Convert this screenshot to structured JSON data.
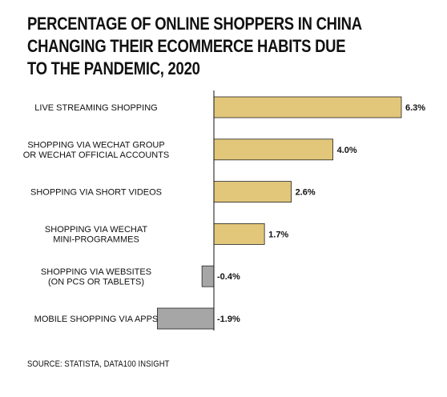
{
  "chart_data": {
    "type": "bar",
    "orientation": "horizontal",
    "title": "PERCENTAGE OF ONLINE SHOPPERS IN CHINA CHANGING THEIR ECOMMERCE HABITS DUE TO THE PANDEMIC, 2020",
    "title_lines": [
      "PERCENTAGE OF ONLINE SHOPPERS IN CHINA",
      "CHANGING THEIR ECOMMERCE HABITS DUE",
      "TO THE PANDEMIC, 2020"
    ],
    "categories": [
      [
        "LIVE STREAMING SHOPPING"
      ],
      [
        "SHOPPING VIA WECHAT GROUP",
        "OR WECHAT OFFICIAL ACCOUNTS"
      ],
      [
        "SHOPPING VIA SHORT VIDEOS"
      ],
      [
        "SHOPPING VIA WECHAT",
        "MINI-PROGRAMMES"
      ],
      [
        "SHOPPING VIA WEBSITES",
        "(ON PCS OR TABLETS)"
      ],
      [
        "MOBILE SHOPPING VIA APPS"
      ]
    ],
    "values": [
      6.3,
      4.0,
      2.6,
      1.7,
      -0.4,
      -1.9
    ],
    "value_labels": [
      "6.3%",
      "4.0%",
      "2.6%",
      "1.7%",
      "-0.4%",
      "-1.9%"
    ],
    "xlim": [
      -1.9,
      6.3
    ],
    "colors": {
      "positive": "#e2c77a",
      "negative": "#a6a6a6",
      "stroke": "#222222",
      "axis": "#111111"
    },
    "grid": false,
    "source": "SOURCE: STATISTA, DATA100 INSIGHT"
  }
}
